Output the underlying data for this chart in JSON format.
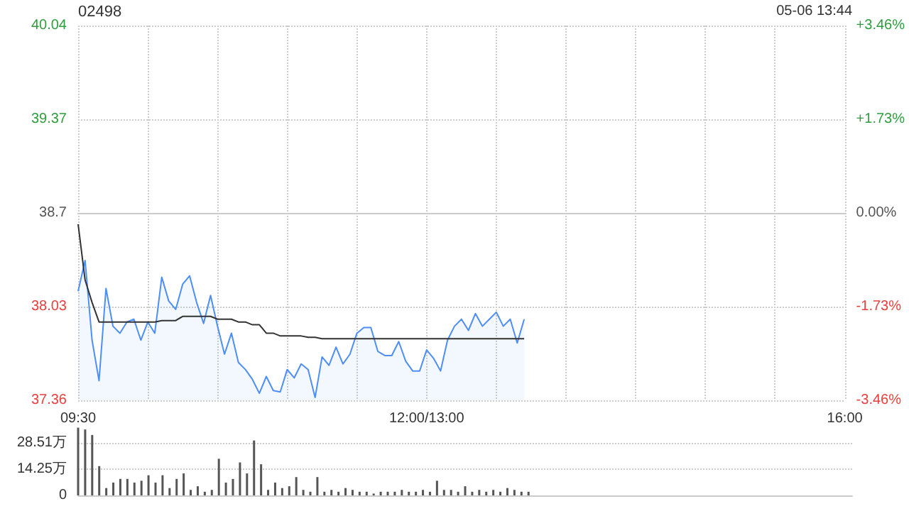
{
  "chart_data": [
    {
      "type": "line",
      "title": "02498",
      "annotations": [
        "05-06 13:44"
      ],
      "categories": [
        "09:30",
        null,
        null,
        null,
        null,
        null,
        null,
        null,
        null,
        null,
        null,
        null,
        null,
        null,
        null,
        null,
        null,
        null,
        null,
        null,
        null,
        null,
        null,
        null,
        null,
        null,
        null,
        null,
        null,
        null,
        null,
        null,
        null,
        null,
        null,
        null,
        null,
        null,
        null,
        null,
        null,
        null,
        null,
        null,
        null,
        null,
        null,
        null,
        null,
        null,
        "12:00/13:00",
        null,
        null,
        null,
        null,
        null,
        null,
        null,
        null,
        null,
        null,
        null,
        null,
        null,
        null,
        null,
        null,
        null,
        null,
        null,
        null,
        null,
        null,
        null,
        null,
        null,
        null,
        null,
        null,
        null,
        null,
        null,
        null,
        null,
        null,
        null,
        null,
        null,
        null,
        null,
        null,
        null,
        null,
        null,
        null,
        null,
        null,
        null,
        null,
        null,
        null,
        null,
        null,
        null,
        null,
        null,
        null,
        null,
        null,
        null,
        "16:00"
      ],
      "ylim": [
        37.36,
        40.04
      ],
      "yticks": [
        37.36,
        38.03,
        38.7,
        39.37,
        40.04
      ],
      "y2lim": [
        -3.46,
        3.46
      ],
      "y2ticks": [
        {
          "value": -3.46,
          "label": "-3.46%"
        },
        {
          "value": -1.73,
          "label": "-1.73%"
        },
        {
          "value": 0,
          "label": "0.00%"
        },
        {
          "value": 1.73,
          "label": "+1.73%"
        },
        {
          "value": 3.46,
          "label": "+3.46%"
        }
      ],
      "grid": true,
      "marker": "none",
      "line_style": "solid",
      "series": [
        {
          "type": "area",
          "color": "#4e8ef7",
          "values": [
            38.14,
            38.36,
            37.79,
            37.5,
            38.16,
            37.89,
            37.84,
            37.92,
            37.94,
            37.79,
            37.92,
            37.84,
            38.24,
            38.07,
            38.01,
            38.19,
            38.25,
            38.06,
            37.91,
            38.11,
            37.89,
            37.69,
            37.84,
            37.63,
            37.58,
            37.51,
            37.41,
            37.53,
            37.43,
            37.42,
            37.58,
            37.52,
            37.62,
            37.58,
            37.38,
            37.67,
            37.61,
            37.74,
            37.62,
            37.69,
            37.84,
            37.88,
            37.88,
            37.71,
            37.68,
            37.68,
            37.78,
            37.64,
            37.57,
            37.57,
            37.72,
            37.66,
            37.57,
            37.79,
            37.89,
            37.94,
            37.86,
            37.98,
            37.89,
            37.94,
            37.99,
            37.89,
            37.94,
            37.77,
            37.94,
            null,
            null,
            null,
            null,
            null,
            null,
            null,
            null,
            null,
            null,
            null,
            null,
            null,
            null,
            null,
            null,
            null,
            null,
            null,
            null,
            null,
            null,
            null,
            null,
            null,
            null,
            null,
            null,
            null,
            null,
            null,
            null,
            null,
            null,
            null,
            null,
            null,
            null,
            null,
            null,
            null,
            null,
            null,
            null,
            null,
            null
          ]
        },
        {
          "type": "line",
          "color": "#333333",
          "values": [
            38.62,
            38.22,
            38.06,
            37.92,
            37.92,
            37.92,
            37.92,
            37.92,
            37.92,
            37.92,
            37.92,
            37.92,
            37.93,
            37.93,
            37.93,
            37.96,
            37.96,
            37.96,
            37.96,
            37.96,
            37.94,
            37.94,
            37.94,
            37.92,
            37.92,
            37.9,
            37.9,
            37.84,
            37.84,
            37.82,
            37.82,
            37.82,
            37.82,
            37.81,
            37.81,
            37.8,
            37.8,
            37.8,
            37.8,
            37.8,
            37.8,
            37.8,
            37.8,
            37.8,
            37.8,
            37.8,
            37.8,
            37.8,
            37.8,
            37.8,
            37.8,
            37.8,
            37.8,
            37.8,
            37.8,
            37.8,
            37.8,
            37.8,
            37.8,
            37.8,
            37.8,
            37.8,
            37.8,
            37.8,
            37.8,
            null,
            null,
            null,
            null,
            null,
            null,
            null,
            null,
            null,
            null,
            null,
            null,
            null,
            null,
            null,
            null,
            null,
            null,
            null,
            null,
            null,
            null,
            null,
            null,
            null,
            null,
            null,
            null,
            null,
            null,
            null,
            null,
            null,
            null,
            null,
            null,
            null,
            null,
            null,
            null,
            null,
            null,
            null,
            null,
            null,
            null
          ]
        }
      ]
    },
    {
      "type": "bar",
      "tick_labels": "y",
      "categories": [
        null,
        null,
        null,
        null,
        null,
        null,
        null,
        null,
        null,
        null,
        null,
        null,
        null,
        null,
        null,
        null,
        null,
        null,
        null,
        null,
        null,
        null,
        null,
        null,
        null,
        null,
        null,
        null,
        null,
        null,
        null,
        null,
        null,
        null,
        null,
        null,
        null,
        null,
        null,
        null,
        null,
        null,
        null,
        null,
        null,
        null,
        null,
        null,
        null,
        null,
        null,
        null,
        null,
        null,
        null,
        null,
        null,
        null,
        null,
        null,
        null,
        null,
        null,
        null,
        null,
        null,
        null,
        null,
        null,
        null,
        null,
        null,
        null,
        null,
        null,
        null,
        null,
        null,
        null,
        null,
        null,
        null,
        null,
        null,
        null,
        null,
        null,
        null,
        null,
        null,
        null,
        null,
        null,
        null,
        null,
        null,
        null,
        null,
        null,
        null,
        null,
        null,
        null,
        null,
        null,
        null,
        null,
        null,
        null,
        null,
        null
      ],
      "ylim": [
        0,
        38
      ],
      "yticks": [
        0,
        {
          "value": 14.25,
          "label": "14.25万"
        },
        {
          "value": 28.51,
          "label": "28.51万"
        }
      ],
      "grid": "y",
      "series": [
        {
          "color": "#555555",
          "values": [
            37,
            36,
            33,
            16,
            4,
            7,
            9,
            9,
            7,
            8,
            11,
            7,
            11,
            4,
            9,
            12,
            3,
            5,
            2,
            3,
            20,
            7,
            9,
            18,
            12,
            30,
            17,
            3,
            7,
            4,
            5,
            10,
            3,
            2,
            10,
            2,
            3,
            2,
            4,
            3,
            2,
            2,
            1,
            2,
            2,
            2,
            3,
            2,
            2,
            3,
            2,
            8,
            3,
            3,
            2,
            5,
            2,
            3,
            2,
            3,
            2,
            4,
            3,
            2,
            2,
            null,
            null,
            null,
            null,
            null,
            null,
            null,
            null,
            null,
            null,
            null,
            null,
            null,
            null,
            null,
            null,
            null,
            null,
            null,
            null,
            null,
            null,
            null,
            null,
            null,
            null,
            null,
            null,
            null,
            null,
            null,
            null,
            null,
            null,
            null,
            null,
            null,
            null,
            null,
            null,
            null,
            null,
            null,
            null,
            null,
            null
          ]
        }
      ]
    }
  ]
}
